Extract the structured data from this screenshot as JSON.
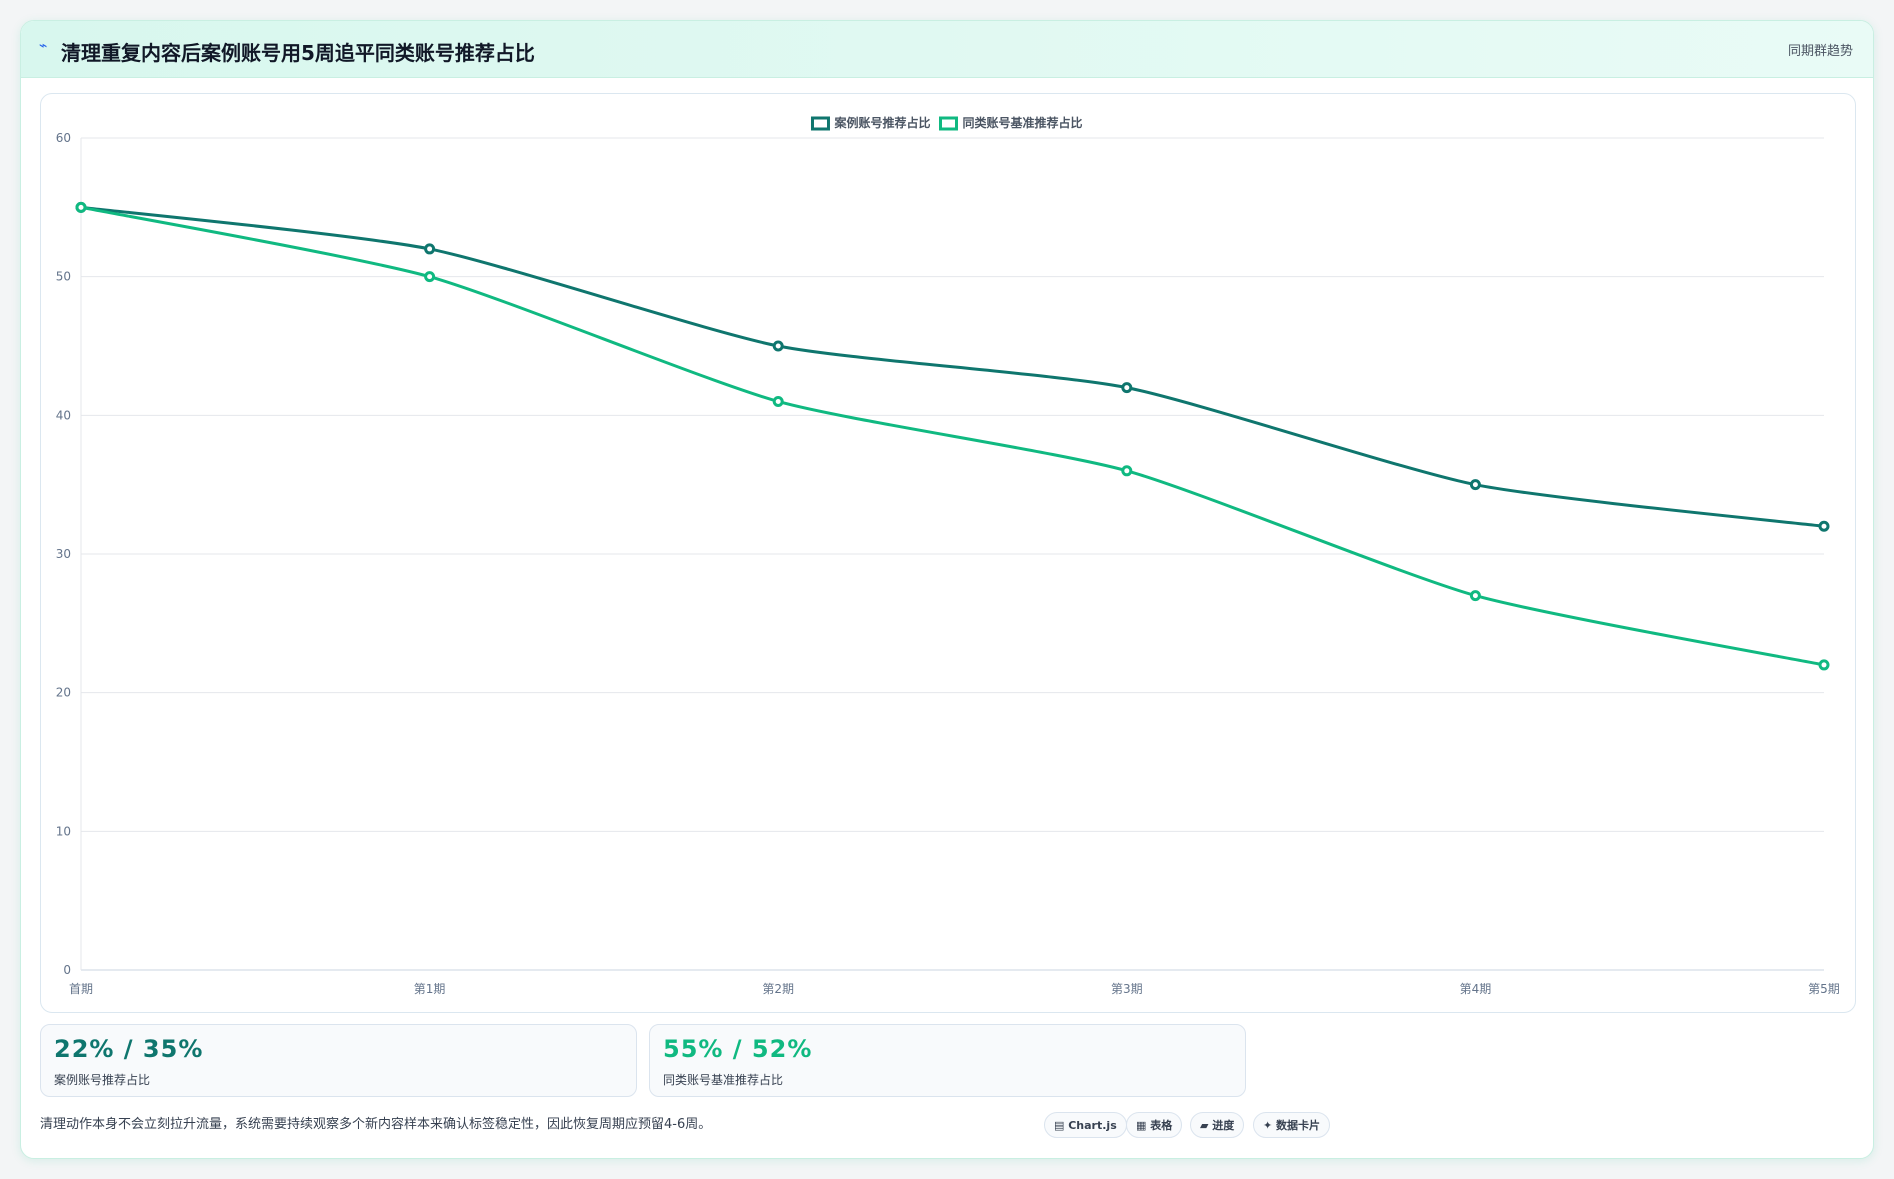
{
  "header": {
    "title": "清理重复内容后案例账号用5周追平同类账号推荐占比",
    "tag": "同期群趋势"
  },
  "chart_data": {
    "type": "line",
    "categories": [
      "首期",
      "第1期",
      "第2期",
      "第3期",
      "第4期",
      "第5期"
    ],
    "series": [
      {
        "name": "案例账号推荐占比",
        "color": "#0f766e",
        "values": [
          55,
          52,
          45,
          42,
          35,
          32
        ]
      },
      {
        "name": "同类账号基准推荐占比",
        "color": "#10b981",
        "values": [
          55,
          50,
          41,
          36,
          27,
          22
        ]
      }
    ],
    "ylim": [
      0,
      60
    ],
    "yticks": [
      0,
      10,
      20,
      30,
      40,
      50,
      60
    ],
    "grid": true,
    "legend": "top"
  },
  "stats": [
    {
      "value": "22% / 35%",
      "label": "案例账号推荐占比"
    },
    {
      "value": "55% / 52%",
      "label": "同类账号基准推荐占比"
    }
  ],
  "footnote": "清理动作本身不会立刻拉升流量，系统需要持续观察多个新内容样本来确认标签稳定性，因此恢复周期应预留4-6周。",
  "chips": [
    "Chart.js",
    "表格",
    "进度",
    "数据卡片"
  ]
}
